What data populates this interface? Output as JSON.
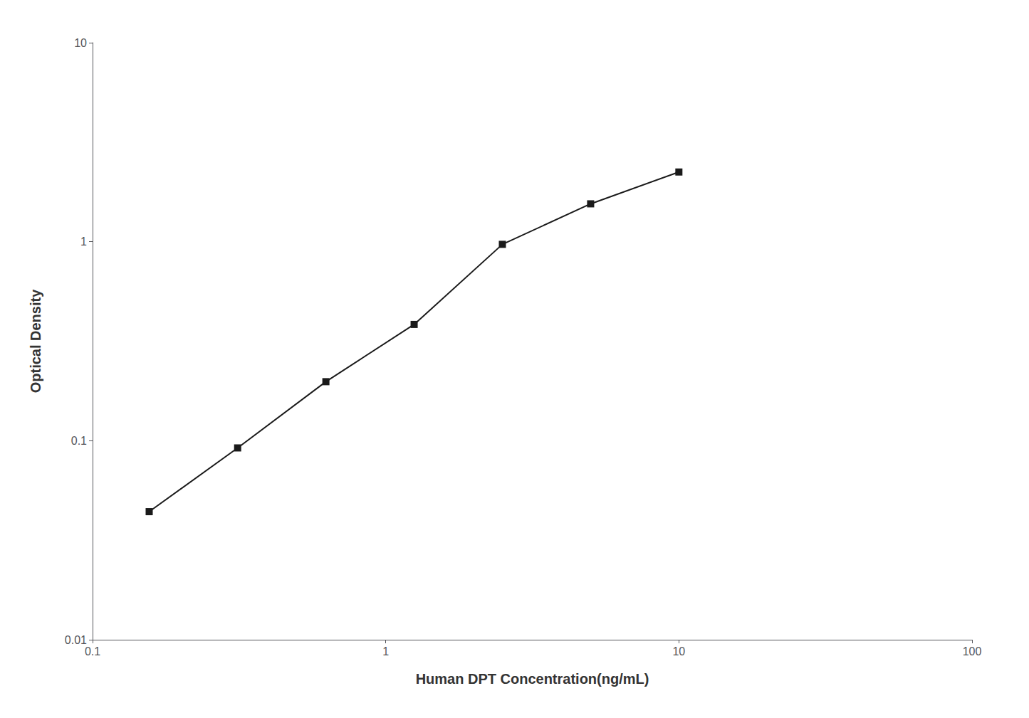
{
  "chart_data": {
    "type": "line",
    "xlabel": "Human DPT Concentration(ng/mL)",
    "ylabel": "Optical Density",
    "x": [
      0.156,
      0.3125,
      0.625,
      1.25,
      2.5,
      5.0,
      10.0
    ],
    "values": [
      0.044,
      0.092,
      0.198,
      0.384,
      0.97,
      1.55,
      2.24
    ],
    "xlim": [
      0.1,
      100
    ],
    "ylim": [
      0.01,
      10
    ],
    "xticks": [
      0.1,
      1,
      10,
      100
    ],
    "yticks": [
      0.01,
      0.1,
      1,
      10
    ],
    "log": true,
    "grid": false,
    "color": "#1a1a1a",
    "marker": "square"
  }
}
